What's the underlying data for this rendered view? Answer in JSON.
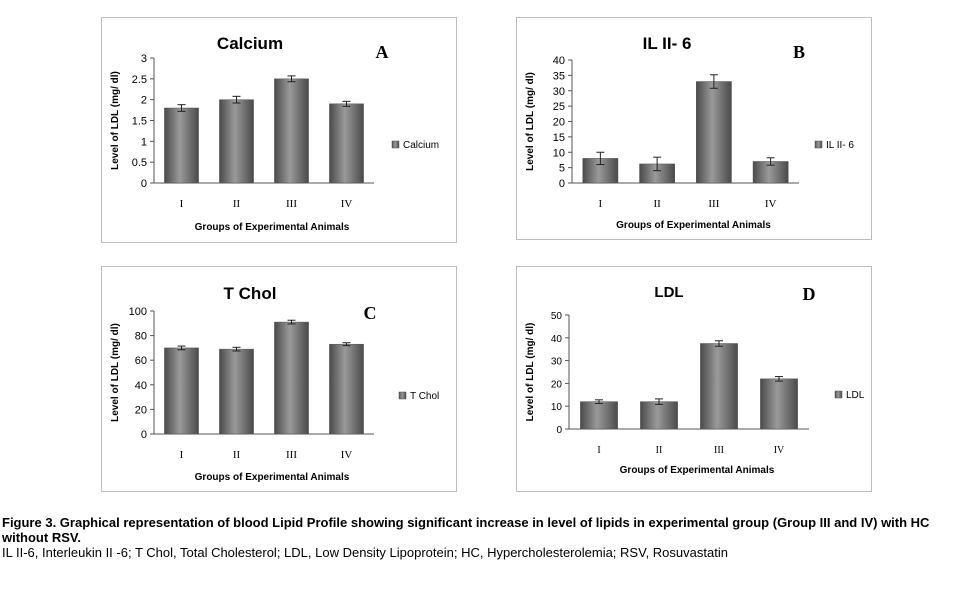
{
  "chart_data": [
    {
      "type": "bar",
      "title": "Calcium",
      "panel_letter": "A",
      "xlabel": "Groups of Experimental Animals",
      "ylabel": "Level of LDL (mg/ dl)",
      "categories": [
        "I",
        "II",
        "III",
        "IV"
      ],
      "series": [
        {
          "name": "Calcium",
          "values": [
            1.8,
            2.0,
            2.5,
            1.9
          ],
          "errors": [
            0.08,
            0.08,
            0.07,
            0.06
          ]
        }
      ],
      "ylim": [
        0,
        3
      ],
      "yticks": [
        "0",
        "0.5",
        "1",
        "1.5",
        "2",
        "2.5",
        "3"
      ],
      "legend_position": "right"
    },
    {
      "type": "bar",
      "title": "IL II- 6",
      "panel_letter": "B",
      "xlabel": "Groups of Experimental Animals",
      "ylabel": "Level of LDL (mg/ dl)",
      "categories": [
        "I",
        "II",
        "III",
        "IV"
      ],
      "series": [
        {
          "name": "IL II- 6",
          "values": [
            8,
            6.2,
            33,
            7
          ],
          "errors": [
            2,
            2.2,
            2.2,
            1.2
          ]
        }
      ],
      "ylim": [
        0,
        40
      ],
      "yticks": [
        "0",
        "5",
        "10",
        "15",
        "20",
        "25",
        "30",
        "35",
        "40"
      ],
      "legend_position": "right"
    },
    {
      "type": "bar",
      "title": "T Chol",
      "panel_letter": "C",
      "xlabel": "Groups of Experimental Animals",
      "ylabel": "Level of LDL (mg/ dl)",
      "categories": [
        "I",
        "II",
        "III",
        "IV"
      ],
      "series": [
        {
          "name": "T Chol",
          "values": [
            70,
            69,
            91,
            73
          ],
          "errors": [
            1.5,
            1.5,
            1.5,
            1.2
          ]
        }
      ],
      "ylim": [
        0,
        100
      ],
      "yticks": [
        "0",
        "20",
        "40",
        "60",
        "80",
        "100"
      ],
      "legend_position": "right"
    },
    {
      "type": "bar",
      "title": "LDL",
      "panel_letter": "D",
      "xlabel": "Groups of Experimental Animals",
      "ylabel": "Level of LDL (mg/ dl)",
      "categories": [
        "I",
        "II",
        "III",
        "IV"
      ],
      "series": [
        {
          "name": "LDL",
          "values": [
            12,
            12,
            37.5,
            22
          ],
          "errors": [
            0.8,
            1.2,
            1.2,
            1.0
          ]
        }
      ],
      "ylim": [
        0,
        50
      ],
      "yticks": [
        "0",
        "10",
        "20",
        "30",
        "40",
        "50"
      ],
      "legend_position": "right"
    }
  ],
  "caption": {
    "line1": "Figure 3. Graphical representation of blood Lipid Profile showing significant increase in level of lipids in experimental group (Group III and IV) with HC without RSV.",
    "line2": "IL II-6, Interleukin II -6; T Chol, Total Cholesterol; LDL, Low Density Lipoprotein; HC, Hypercholesterolemia; RSV, Rosuvastatin"
  },
  "colors": {
    "bar_fill": "#6f6f6f",
    "bar_highlight": "#9a9a9a",
    "bar_dark": "#4a4a4a",
    "axis": "#555555",
    "panel_border": "#bdbdbd"
  }
}
